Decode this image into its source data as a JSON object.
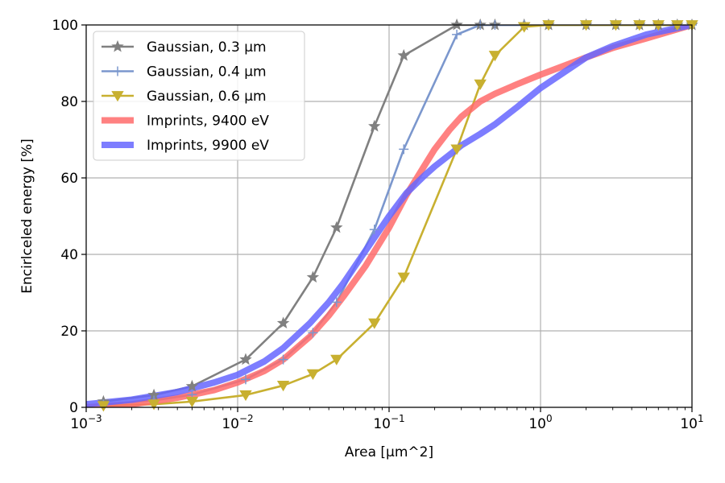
{
  "chart_data": {
    "type": "line",
    "title": "",
    "xlabel": "Area [µm^2]",
    "ylabel": "Encirlceled energy [%]",
    "xscale": "log",
    "xlim": [
      0.001,
      10
    ],
    "ylim": [
      0,
      100
    ],
    "grid": true,
    "legend_position": "top-left",
    "x_ticks": [
      {
        "value": 0.001,
        "base": "10",
        "exp": "−3"
      },
      {
        "value": 0.01,
        "base": "10",
        "exp": "−2"
      },
      {
        "value": 0.1,
        "base": "10",
        "exp": "−1"
      },
      {
        "value": 1,
        "base": "10",
        "exp": "0"
      },
      {
        "value": 10,
        "base": "10",
        "exp": "1"
      }
    ],
    "y_ticks": [
      {
        "value": 0,
        "label": "0"
      },
      {
        "value": 20,
        "label": "20"
      },
      {
        "value": 40,
        "label": "40"
      },
      {
        "value": 60,
        "label": "60"
      },
      {
        "value": 80,
        "label": "80"
      },
      {
        "value": 100,
        "label": "100"
      }
    ],
    "series": [
      {
        "name": "Gaussian, 0.3 µm",
        "color": "#808080",
        "marker": "star",
        "style": "marker-line",
        "x": [
          0.0013,
          0.0028,
          0.005,
          0.0113,
          0.02,
          0.0314,
          0.045,
          0.08,
          0.125,
          0.28,
          0.4,
          0.5,
          0.78,
          1.13,
          2.0,
          3.14,
          4.5,
          6.0,
          8.0,
          10.0
        ],
        "y": [
          1.5,
          3.2,
          5.5,
          12.5,
          22,
          34,
          47,
          73.5,
          92,
          100,
          100,
          100,
          100,
          100,
          100,
          100,
          100,
          100,
          100,
          100
        ]
      },
      {
        "name": "Gaussian, 0.4 µm",
        "color": "#7b97cd",
        "marker": "plus",
        "style": "marker-line",
        "x": [
          0.0013,
          0.0028,
          0.005,
          0.0113,
          0.02,
          0.0314,
          0.045,
          0.08,
          0.125,
          0.28,
          0.4,
          0.5,
          0.78,
          1.13,
          2.0,
          3.14,
          4.5,
          6.0,
          8.0,
          10.0
        ],
        "y": [
          0.8,
          1.8,
          3.3,
          7.3,
          12.5,
          19.5,
          27.5,
          46.5,
          67.5,
          97.5,
          100,
          100,
          100,
          100,
          100,
          100,
          100,
          100,
          100,
          100
        ]
      },
      {
        "name": "Gaussian, 0.6 µm",
        "color": "#c8b030",
        "marker": "triangle-down",
        "style": "marker-line",
        "x": [
          0.0013,
          0.0028,
          0.005,
          0.0113,
          0.02,
          0.0314,
          0.045,
          0.08,
          0.125,
          0.28,
          0.4,
          0.5,
          0.78,
          1.13,
          2.0,
          3.14,
          4.5,
          6.0,
          8.0,
          10.0
        ],
        "y": [
          0.4,
          0.8,
          1.5,
          3.2,
          5.7,
          8.7,
          12.5,
          22,
          34,
          67.5,
          84.5,
          92,
          99.5,
          100,
          100,
          100,
          100,
          100,
          100,
          100
        ]
      },
      {
        "name": "Imprints, 9400 eV",
        "color": "#ff6b6b",
        "marker": "none",
        "style": "thick-line",
        "x": [
          0.001,
          0.002,
          0.004,
          0.007,
          0.01,
          0.015,
          0.02,
          0.03,
          0.04,
          0.05,
          0.07,
          0.1,
          0.13,
          0.17,
          0.2,
          0.25,
          0.3,
          0.4,
          0.5,
          0.7,
          1.0,
          2.0,
          3.0,
          5.0,
          10.0
        ],
        "y": [
          0,
          0.8,
          2.5,
          4.5,
          6.5,
          9.5,
          12.5,
          18.5,
          24,
          29,
          37,
          47,
          55.5,
          63,
          67.5,
          72.5,
          76,
          80,
          82,
          84.5,
          87,
          91.5,
          94,
          96.5,
          100
        ]
      },
      {
        "name": "Imprints, 9900 eV",
        "color": "#6666ff",
        "marker": "none",
        "style": "thick-line",
        "x": [
          0.001,
          0.002,
          0.004,
          0.007,
          0.01,
          0.015,
          0.02,
          0.03,
          0.04,
          0.05,
          0.07,
          0.1,
          0.13,
          0.17,
          0.2,
          0.25,
          0.3,
          0.4,
          0.5,
          0.7,
          1.0,
          2.0,
          3.0,
          5.0,
          10.0
        ],
        "y": [
          0.8,
          2,
          4,
          6.5,
          8.5,
          12,
          15.5,
          22,
          27.5,
          32.5,
          41,
          50,
          56,
          60.5,
          63,
          66,
          68.5,
          71.5,
          74,
          78.5,
          83.5,
          91.5,
          94.5,
          97.5,
          100
        ]
      }
    ]
  }
}
